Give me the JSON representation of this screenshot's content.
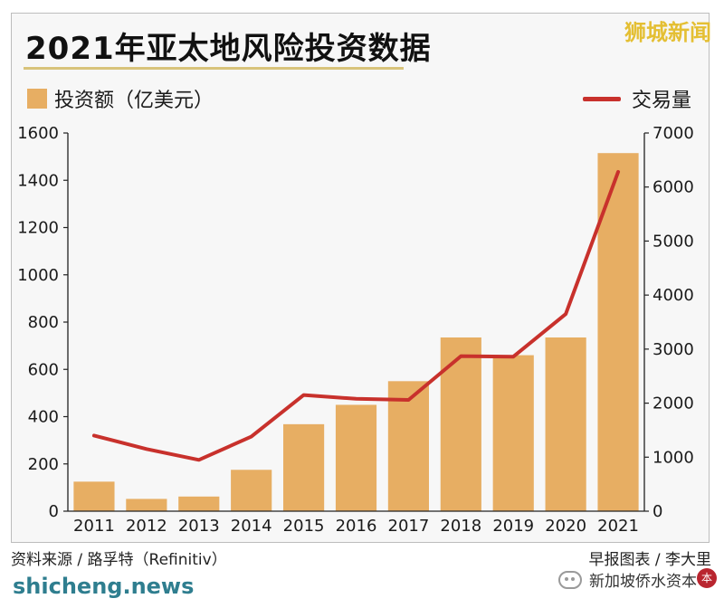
{
  "brand": "狮城新闻",
  "footer": {
    "source": "资料来源 / 路孚特（Refinitiv）",
    "credit": "早报图表 / 李大里",
    "site": "shicheng.news",
    "wechat": "新加坡侨水资本"
  },
  "colors": {
    "bar": "#e7ae63",
    "line": "#c8312c",
    "brand": "#e4bf33",
    "site": "#2f7e8f"
  },
  "chart_data": {
    "type": "bar",
    "title": "2021年亚太地风险投资数据",
    "categories": [
      "2011",
      "2012",
      "2013",
      "2014",
      "2015",
      "2016",
      "2017",
      "2018",
      "2019",
      "2020",
      "2021"
    ],
    "series": [
      {
        "name": "投资额（亿美元）",
        "type": "bar",
        "axis": "left",
        "values": [
          125,
          52,
          62,
          175,
          368,
          450,
          550,
          735,
          660,
          735,
          1515
        ]
      },
      {
        "name": "交易量",
        "type": "line",
        "axis": "right",
        "values": [
          1400,
          1150,
          950,
          1380,
          2150,
          2080,
          2060,
          2870,
          2860,
          3650,
          6280
        ]
      }
    ],
    "y_left": {
      "range": [
        0,
        1600
      ],
      "ticks": [
        "0",
        "200",
        "400",
        "600",
        "800",
        "1000",
        "1200",
        "1400",
        "1600"
      ]
    },
    "y_right": {
      "range": [
        0,
        7000
      ],
      "ticks": [
        "0",
        "1000",
        "2000",
        "3000",
        "4000",
        "5000",
        "6000",
        "7000"
      ]
    },
    "legend_placement": "top",
    "grid": false
  }
}
